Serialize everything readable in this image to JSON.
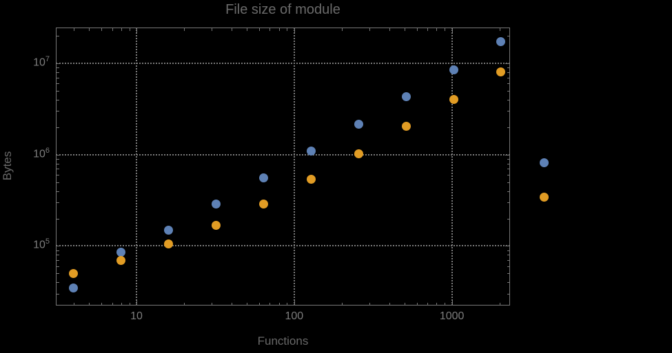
{
  "chart_data": {
    "type": "scatter",
    "title": "File size of module",
    "xlabel": "Functions",
    "ylabel": "Bytes",
    "x_scale": "log",
    "y_scale": "log",
    "xlim": [
      3.08,
      2337
    ],
    "ylim": [
      22300,
      24640000
    ],
    "grid": "dotted major gridlines on both axes",
    "legend": "none",
    "x_major_ticks": [
      {
        "value": 10,
        "label": "10"
      },
      {
        "value": 100,
        "label": "100"
      },
      {
        "value": 1000,
        "label": "1000"
      }
    ],
    "y_major_ticks": [
      {
        "value": 100000,
        "mantissa": "10",
        "exponent": "5"
      },
      {
        "value": 1000000,
        "mantissa": "10",
        "exponent": "6"
      },
      {
        "value": 10000000,
        "mantissa": "10",
        "exponent": "7"
      }
    ],
    "x": [
      4,
      8,
      16,
      32,
      64,
      128,
      256,
      512,
      1024,
      2048,
      3850
    ],
    "series": [
      {
        "name": "blue-series",
        "color": "#5e81b5",
        "values": [
          35000,
          86000,
          150000,
          290000,
          560000,
          1100000,
          2170000,
          4300000,
          8550000,
          17400000,
          810000
        ]
      },
      {
        "name": "orange-series",
        "color": "#e19c24",
        "values": [
          50000,
          70000,
          106000,
          167000,
          290000,
          542000,
          1030000,
          2060000,
          4000000,
          8100000,
          340000
        ]
      }
    ],
    "note_points_outside_frame": "last pair of points is drawn to the right of the plot frame",
    "style": {
      "background": "#000000",
      "frame_color": "#787878",
      "grid_color": "#7a7a7a",
      "tick_label_color": "#7d7d7d",
      "title_color": "#6a6a6a",
      "axis_label_color": "#696969"
    }
  }
}
